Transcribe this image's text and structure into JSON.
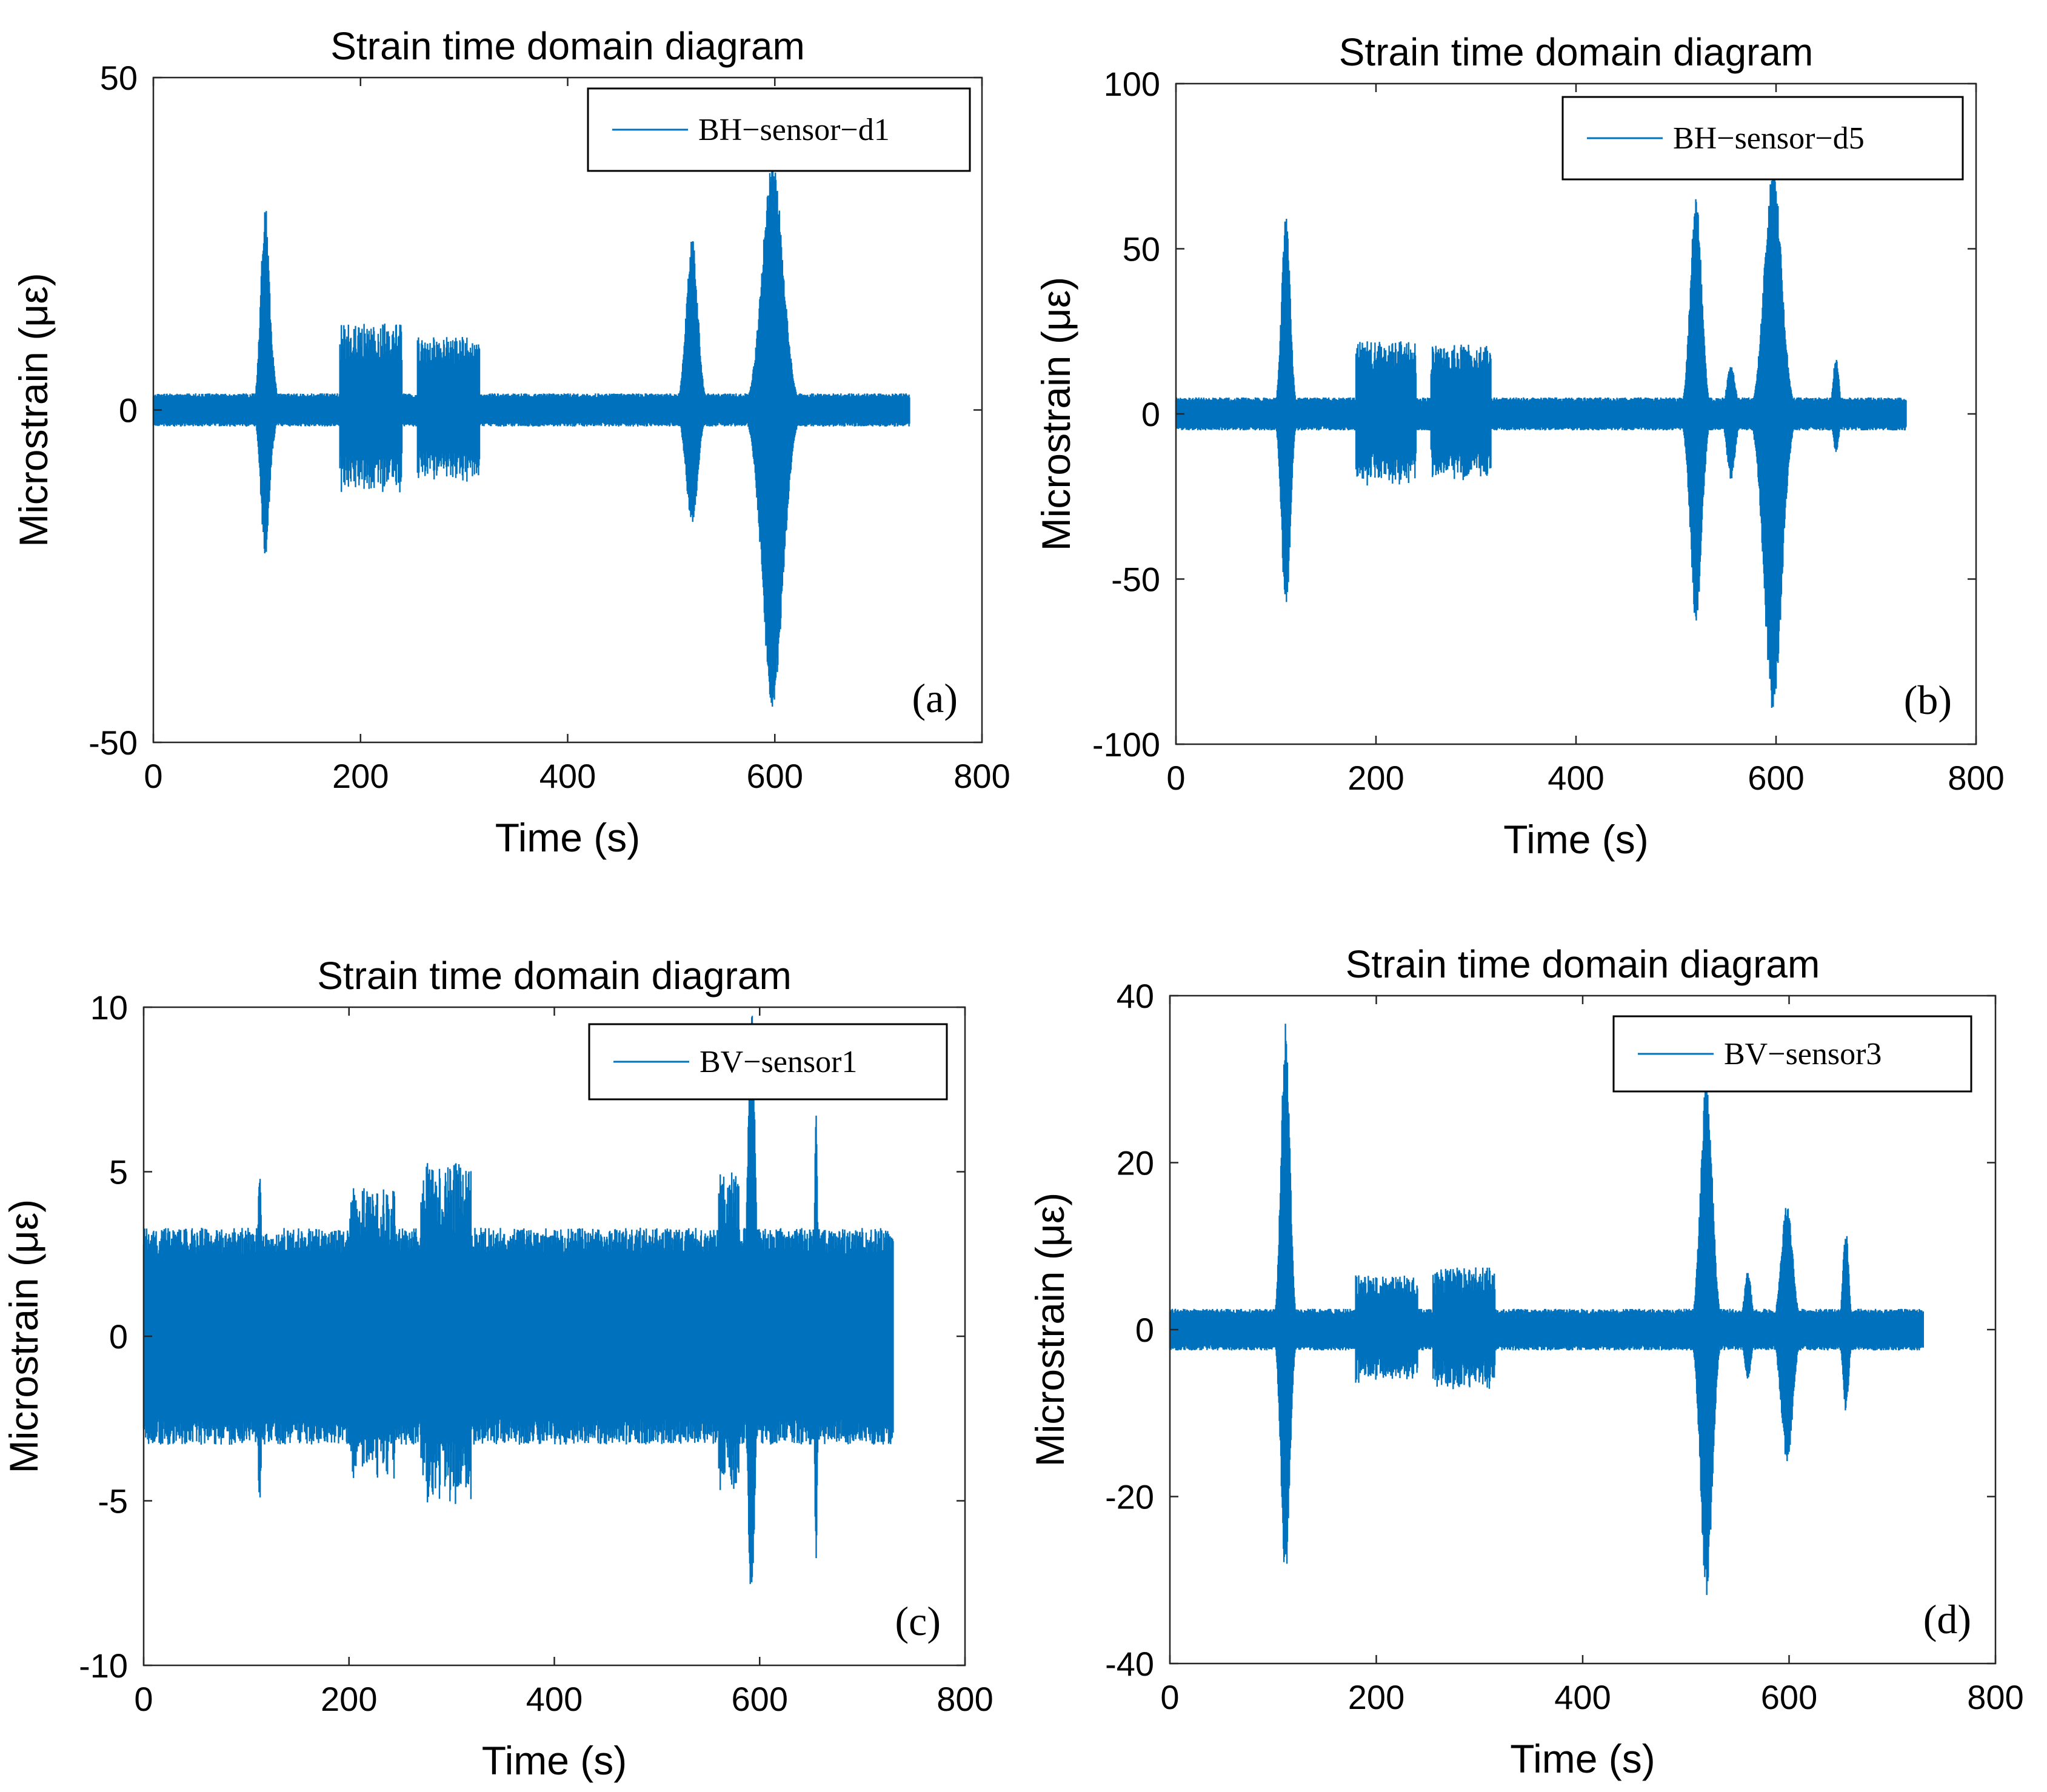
{
  "figure": {
    "signal_color": "#0072BD",
    "panels": [
      {
        "id": "a",
        "chart_data": {
          "type": "line",
          "title": "Strain time domain diagram",
          "xlabel": "Time (s)",
          "ylabel": "Microstrain (με)",
          "xlim": [
            0,
            800
          ],
          "ylim": [
            -50,
            50
          ],
          "xticks": [
            0,
            200,
            400,
            600,
            800
          ],
          "yticks": [
            -50,
            0,
            50
          ],
          "xtick_labels": [
            "0",
            "200",
            "400",
            "600",
            "800"
          ],
          "ytick_labels": [
            "-50",
            "0",
            "50"
          ],
          "legend": "BH−sensor−d1",
          "legend_position": "top-right",
          "panel_label": "(a)",
          "duration": 730,
          "base_amplitude": 2.5,
          "baseline": 0,
          "events": [
            {
              "t": 108,
              "up": 31,
              "down": 22,
              "w": 6
            },
            {
              "t": 112,
              "up": 12,
              "down": 8,
              "w": 6
            },
            {
              "t": 520,
              "up": 26,
              "down": 17,
              "w": 8
            },
            {
              "t": 598,
              "up": 38,
              "down": 45,
              "w": 14
            }
          ],
          "bursts": [
            {
              "t0": 180,
              "t1": 240,
              "amp": 13
            },
            {
              "t0": 255,
              "t1": 315,
              "amp": 11
            }
          ]
        }
      },
      {
        "id": "b",
        "chart_data": {
          "type": "line",
          "title": "Strain time domain diagram",
          "xlabel": "Time (s)",
          "ylabel": "Microstrain (με)",
          "xlim": [
            0,
            800
          ],
          "ylim": [
            -100,
            100
          ],
          "xticks": [
            0,
            200,
            400,
            600,
            800
          ],
          "yticks": [
            -100,
            -50,
            0,
            50,
            100
          ],
          "xtick_labels": [
            "0",
            "200",
            "400",
            "600",
            "800"
          ],
          "ytick_labels": [
            "-100",
            "-50",
            "0",
            "50",
            "100"
          ],
          "legend": "BH−sensor−d5",
          "legend_position": "top-right",
          "panel_label": "(b)",
          "duration": 730,
          "base_amplitude": 5,
          "baseline": 0,
          "events": [
            {
              "t": 110,
              "up": 61,
              "down": 62,
              "w": 6
            },
            {
              "t": 520,
              "up": 66,
              "down": 63,
              "w": 8
            },
            {
              "t": 555,
              "up": 15,
              "down": 20,
              "w": 6
            },
            {
              "t": 597,
              "up": 75,
              "down": 92,
              "w": 12
            },
            {
              "t": 660,
              "up": 18,
              "down": 12,
              "w": 4
            }
          ],
          "bursts": [
            {
              "t0": 180,
              "t1": 240,
              "amp": 22
            },
            {
              "t0": 255,
              "t1": 315,
              "amp": 21
            }
          ]
        }
      },
      {
        "id": "c",
        "chart_data": {
          "type": "line",
          "title": "Strain time domain diagram",
          "xlabel": "Time (s)",
          "ylabel": "Microstrain (με)",
          "xlim": [
            0,
            800
          ],
          "ylim": [
            -10,
            10
          ],
          "xticks": [
            0,
            200,
            400,
            600,
            800
          ],
          "yticks": [
            -10,
            -5,
            0,
            5,
            10
          ],
          "xtick_labels": [
            "0",
            "200",
            "400",
            "600",
            "800"
          ],
          "ytick_labels": [
            "-10",
            "-5",
            "0",
            "5",
            "10"
          ],
          "legend": "BV−sensor1",
          "legend_position": "top-right",
          "panel_label": "(c)",
          "duration": 730,
          "base_amplitude": 3.3,
          "baseline": 0,
          "events": [
            {
              "t": 113,
              "up": 5.2,
              "down": 5.0,
              "w": 3
            },
            {
              "t": 592,
              "up": 10,
              "down": 8,
              "w": 5
            },
            {
              "t": 655,
              "up": 6.9,
              "down": 6.8,
              "w": 2
            }
          ],
          "bursts": [
            {
              "t0": 200,
              "t1": 245,
              "amp": 4.5
            },
            {
              "t0": 270,
              "t1": 320,
              "amp": 5.3
            },
            {
              "t0": 560,
              "t1": 580,
              "amp": 5.0
            }
          ]
        }
      },
      {
        "id": "d",
        "chart_data": {
          "type": "line",
          "title": "Strain time domain diagram",
          "xlabel": "Time (s)",
          "ylabel": "Microstrain (με)",
          "xlim": [
            0,
            800
          ],
          "ylim": [
            -40,
            40
          ],
          "xticks": [
            0,
            200,
            400,
            600,
            800
          ],
          "yticks": [
            -40,
            -20,
            0,
            20,
            40
          ],
          "xtick_labels": [
            "0",
            "200",
            "400",
            "600",
            "800"
          ],
          "ytick_labels": [
            "-40",
            "-20",
            "0",
            "20",
            "40"
          ],
          "legend": "BV−sensor3",
          "legend_position": "top-right",
          "panel_label": "(d)",
          "duration": 730,
          "base_amplitude": 2.5,
          "baseline": 0,
          "events": [
            {
              "t": 112,
              "up": 37,
              "down": 30,
              "w": 6
            },
            {
              "t": 520,
              "up": 30,
              "down": 32,
              "w": 8
            },
            {
              "t": 560,
              "up": 7,
              "down": 6,
              "w": 5
            },
            {
              "t": 598,
              "up": 15,
              "down": 16,
              "w": 8
            },
            {
              "t": 655,
              "up": 12,
              "down": 10,
              "w": 4
            }
          ],
          "bursts": [
            {
              "t0": 180,
              "t1": 240,
              "amp": 6.5
            },
            {
              "t0": 255,
              "t1": 315,
              "amp": 7.5
            }
          ]
        }
      }
    ]
  }
}
